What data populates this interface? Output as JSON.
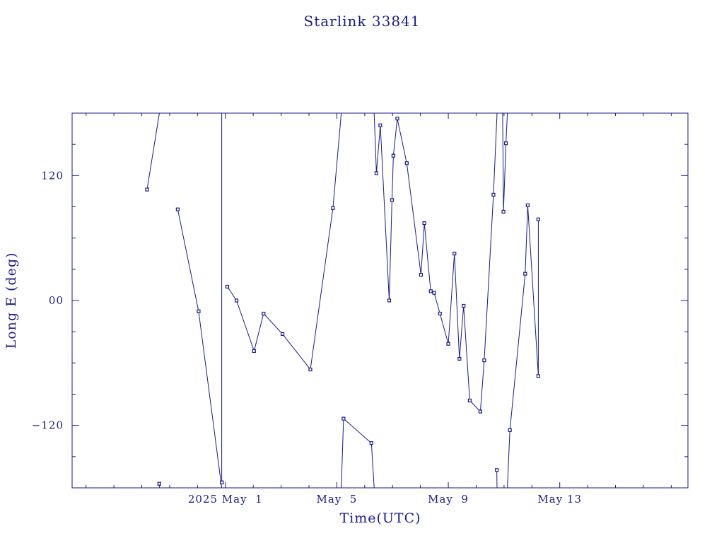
{
  "chart_data": {
    "type": "line",
    "title": "Starlink 33841",
    "xlabel": "Time(UTC)",
    "ylabel": "Long E (deg)",
    "x_unit": "days (UTC), May 2025",
    "xlim": [
      -4.5,
      17.6
    ],
    "ylim": [
      -180,
      180
    ],
    "x_ticks": [
      {
        "value": 1,
        "label": "2025 May  1"
      },
      {
        "value": 5,
        "label": "May  5"
      },
      {
        "value": 9,
        "label": "May  9"
      },
      {
        "value": 13,
        "label": "May 13"
      }
    ],
    "y_ticks": [
      {
        "value": 120,
        "label": "120"
      },
      {
        "value": 0,
        "label": "00"
      },
      {
        "value": -120,
        "label": "−120"
      }
    ],
    "segments": [
      [
        [
          -1.81,
          106.6
        ],
        [
          -1.37,
          180
        ]
      ],
      [
        [
          -1.37,
          -176
        ],
        [
          -1.37,
          -180
        ]
      ],
      [
        [
          -0.71,
          87.5
        ],
        [
          0.04,
          -10.4
        ],
        [
          0.87,
          -180
        ]
      ],
      [
        [
          0.87,
          -174.8
        ],
        [
          0.87,
          180
        ]
      ],
      [
        [
          1.07,
          13.3
        ],
        [
          1.4,
          0.0
        ],
        [
          2.03,
          -48.5
        ],
        [
          2.37,
          -12.6
        ],
        [
          3.05,
          -32.2
        ],
        [
          4.05,
          -66.3
        ],
        [
          4.86,
          88.8
        ],
        [
          5.16,
          180
        ]
      ],
      [
        [
          5.16,
          -180
        ],
        [
          5.24,
          -113.5
        ],
        [
          6.24,
          -137.0
        ],
        [
          6.34,
          -180
        ]
      ],
      [
        [
          6.34,
          180
        ],
        [
          6.42,
          122.3
        ],
        [
          6.56,
          168.3
        ],
        [
          6.88,
          0.0
        ],
        [
          6.98,
          96.5
        ],
        [
          7.03,
          139.1
        ],
        [
          7.17,
          174.8
        ],
        [
          7.51,
          131.9
        ],
        [
          8.02,
          24.7
        ],
        [
          8.14,
          74.3
        ],
        [
          8.37,
          8.9
        ],
        [
          8.49,
          7.4
        ],
        [
          8.7,
          -12.6
        ],
        [
          9.0,
          -41.6
        ],
        [
          9.22,
          45.1
        ],
        [
          9.4,
          -56.0
        ],
        [
          9.55,
          -5.1
        ],
        [
          9.77,
          -96.1
        ],
        [
          10.15,
          -106.7
        ],
        [
          10.29,
          -57.5
        ],
        [
          10.62,
          101.6
        ],
        [
          10.75,
          180
        ]
      ],
      [
        [
          10.75,
          -180
        ],
        [
          10.74,
          -162.9
        ]
      ],
      [
        [
          10.95,
          184
        ],
        [
          10.98,
          85.3
        ],
        [
          11.07,
          151.0
        ],
        [
          11.12,
          180
        ]
      ],
      [
        [
          11.12,
          -180
        ],
        [
          11.21,
          -124.5
        ],
        [
          11.76,
          25.7
        ],
        [
          11.85,
          91.4
        ],
        [
          12.23,
          -72.6
        ],
        [
          12.23,
          77.9
        ]
      ]
    ]
  }
}
